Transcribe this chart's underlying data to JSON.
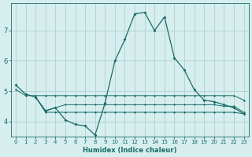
{
  "xlabel": "Humidex (Indice chaleur)",
  "background_color": "#d6eeed",
  "grid_color": "#b0d0ce",
  "line_color": "#1a6b6b",
  "xlim": [
    -0.5,
    23.5
  ],
  "ylim": [
    3.5,
    7.9
  ],
  "yticks": [
    4,
    5,
    6,
    7
  ],
  "xticks": [
    0,
    1,
    2,
    3,
    4,
    5,
    6,
    7,
    8,
    9,
    10,
    11,
    12,
    13,
    14,
    15,
    16,
    17,
    18,
    19,
    20,
    21,
    22,
    23
  ],
  "series1_x": [
    0,
    1,
    2,
    3,
    4,
    5,
    6,
    7,
    8,
    9,
    10,
    11,
    12,
    13,
    14,
    15,
    16,
    17,
    18,
    19,
    20,
    21,
    22,
    23
  ],
  "series1_y": [
    5.2,
    4.9,
    4.8,
    4.35,
    4.45,
    4.05,
    3.9,
    3.85,
    3.55,
    4.6,
    6.0,
    6.7,
    7.55,
    7.6,
    7.0,
    7.45,
    6.1,
    5.7,
    5.05,
    4.7,
    4.65,
    4.55,
    4.45,
    4.25
  ],
  "series2_x": [
    0,
    1,
    2,
    3,
    4,
    5,
    6,
    7,
    8,
    9,
    10,
    11,
    12,
    13,
    14,
    15,
    16,
    17,
    18,
    19,
    20,
    21,
    22,
    23
  ],
  "series2_y": [
    5.05,
    4.85,
    4.85,
    4.85,
    4.85,
    4.85,
    4.85,
    4.85,
    4.85,
    4.85,
    4.85,
    4.85,
    4.85,
    4.85,
    4.85,
    4.85,
    4.85,
    4.85,
    4.85,
    4.85,
    4.85,
    4.85,
    4.85,
    4.7
  ],
  "series3_x": [
    2,
    3,
    4,
    5,
    6,
    7,
    8,
    9,
    10,
    11,
    12,
    13,
    14,
    15,
    16,
    17,
    18,
    19,
    20,
    21,
    22,
    23
  ],
  "series3_y": [
    4.8,
    4.35,
    4.45,
    4.55,
    4.55,
    4.55,
    4.55,
    4.55,
    4.55,
    4.55,
    4.55,
    4.55,
    4.55,
    4.55,
    4.55,
    4.55,
    4.55,
    4.55,
    4.55,
    4.5,
    4.5,
    4.3
  ],
  "series4_x": [
    2,
    3,
    4,
    5,
    6,
    7,
    8,
    9,
    10,
    11,
    12,
    13,
    14,
    15,
    16,
    17,
    18,
    19,
    20,
    21,
    22,
    23
  ],
  "series4_y": [
    4.8,
    4.3,
    4.3,
    4.3,
    4.3,
    4.3,
    4.3,
    4.3,
    4.3,
    4.3,
    4.3,
    4.3,
    4.3,
    4.3,
    4.3,
    4.3,
    4.3,
    4.3,
    4.3,
    4.3,
    4.3,
    4.25
  ]
}
